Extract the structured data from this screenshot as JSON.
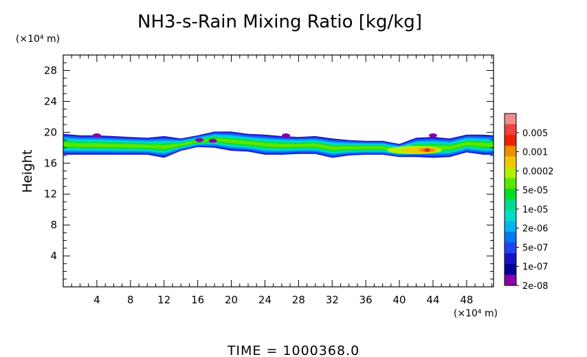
{
  "chart_data": {
    "type": "heatmap",
    "title": "NH3-s-Rain Mixing Ratio [kg/kg]",
    "ylabel": "Height",
    "y_unit": "(×10⁴ m)",
    "x_unit": "(×10⁴ m)",
    "time_label": "TIME = 1000368.0",
    "xlim": [
      0,
      51.2
    ],
    "ylim": [
      0,
      30
    ],
    "x_ticks": [
      "4",
      "8",
      "12",
      "16",
      "20",
      "24",
      "28",
      "32",
      "36",
      "40",
      "44",
      "48"
    ],
    "y_ticks": [
      "4",
      "8",
      "12",
      "16",
      "20",
      "24",
      "28"
    ],
    "colorbar": {
      "labels": [
        "0.005",
        "0.001",
        "0.0002",
        "5e-05",
        "1e-05",
        "2e-06",
        "5e-07",
        "1e-07",
        "2e-08"
      ],
      "colors": [
        "#f08c8c",
        "#f04040",
        "#f02000",
        "#f08c00",
        "#f0c800",
        "#b4f000",
        "#5ae600",
        "#00dc28",
        "#00dc8c",
        "#00dcc8",
        "#00b4f0",
        "#0078f0",
        "#1e46f0",
        "#1414c8",
        "#000096",
        "#8c00aa"
      ]
    },
    "layer": {
      "x_profile": [
        0,
        2,
        4,
        6,
        8,
        10,
        12,
        14,
        16,
        18,
        20,
        22,
        24,
        26,
        28,
        30,
        32,
        34,
        36,
        38,
        40,
        42,
        44,
        46,
        48,
        50,
        51.2
      ],
      "top": [
        19.8,
        19.6,
        19.6,
        19.5,
        19.4,
        19.3,
        19.5,
        19.2,
        19.6,
        20.1,
        20.1,
        19.8,
        19.7,
        19.5,
        19.4,
        19.5,
        19.2,
        19.0,
        18.9,
        18.9,
        18.5,
        19.3,
        19.4,
        19.2,
        19.7,
        19.7,
        19.6
      ],
      "bottom": [
        17.1,
        17.1,
        17.1,
        17.1,
        17.1,
        17.1,
        16.7,
        17.6,
        18.1,
        18.0,
        17.6,
        17.5,
        17.1,
        17.1,
        17.2,
        17.2,
        16.7,
        17.0,
        17.1,
        17.1,
        16.8,
        16.8,
        16.7,
        16.8,
        17.4,
        17.1,
        17.1
      ],
      "core_value_range": "2e-08 to 5e-05",
      "peak": {
        "x": 43.3,
        "y": 17.7,
        "value": "0.0002"
      }
    }
  }
}
